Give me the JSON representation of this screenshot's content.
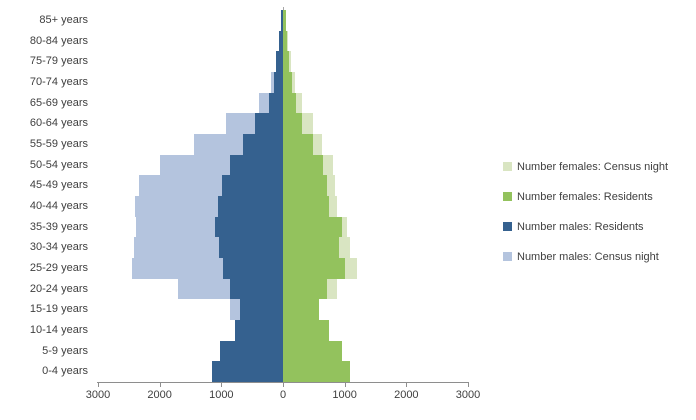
{
  "chart_data": {
    "type": "bar",
    "subtype": "population_pyramid",
    "orientation": "horizontal",
    "values_estimated_from_axis": true,
    "categories": [
      "85+ years",
      "80-84 years",
      "75-79 years",
      "70-74 years",
      "65-69 years",
      "60-64 years",
      "55-59 years",
      "50-54 years",
      "45-49 years",
      "40-44 years",
      "35-39 years",
      "30-34 years",
      "25-29 years",
      "20-24 years",
      "15-19 years",
      "10-14 years",
      "5-9 years",
      "0-4 years"
    ],
    "series": [
      {
        "name": "Number males: Census night",
        "side": "left",
        "color": "#B4C4DE",
        "values": [
          30,
          60,
          120,
          200,
          390,
          920,
          1440,
          1990,
          2330,
          2400,
          2380,
          2410,
          2450,
          1700,
          860,
          720,
          980,
          1100
        ]
      },
      {
        "name": "Number males: Residents",
        "side": "left",
        "color": "#35618F",
        "values": [
          35,
          65,
          110,
          150,
          230,
          455,
          655,
          860,
          985,
          1050,
          1100,
          1040,
          970,
          860,
          700,
          780,
          1020,
          1155
        ]
      },
      {
        "name": "Number females: Residents",
        "side": "right",
        "color": "#93C25D",
        "values": [
          50,
          70,
          105,
          140,
          215,
          310,
          490,
          650,
          710,
          750,
          950,
          910,
          1000,
          710,
          590,
          740,
          955,
          1085
        ]
      },
      {
        "name": "Number females: Census night",
        "side": "right",
        "color": "#D9E5C2",
        "values": [
          55,
          85,
          125,
          200,
          310,
          480,
          630,
          805,
          845,
          880,
          1030,
          1085,
          1205,
          880,
          560,
          700,
          920,
          1040
        ]
      }
    ],
    "x_axis": {
      "tick_labels": [
        "3000",
        "2000",
        "1000",
        "0",
        "1000",
        "2000",
        "3000"
      ],
      "tick_values": [
        -3000,
        -2000,
        -1000,
        0,
        1000,
        2000,
        3000
      ],
      "lim": [
        -3000,
        3000
      ]
    },
    "y_axis": {
      "position": "left"
    },
    "grid": false,
    "legend": {
      "position": "right",
      "entries": [
        {
          "label": "Number females: Census night",
          "color": "#D9E5C2"
        },
        {
          "label": "Number females: Residents",
          "color": "#93C25D"
        },
        {
          "label": "Number males: Residents",
          "color": "#35618F"
        },
        {
          "label": "Number males: Census night",
          "color": "#B4C4DE"
        }
      ]
    },
    "colors": {
      "axis_line": "#8e8e8e",
      "category_axis_line": "#a6a6a6",
      "label_text": "#3f3f3f",
      "background": "#ffffff"
    }
  }
}
